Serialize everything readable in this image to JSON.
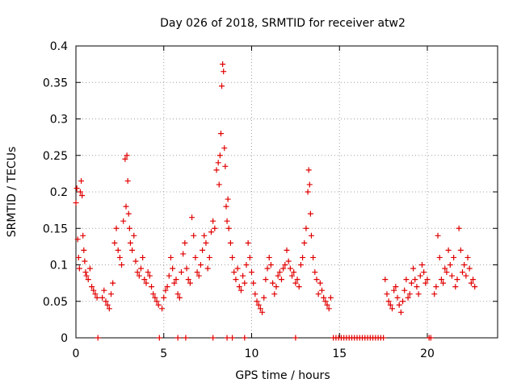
{
  "chart_data": {
    "type": "scatter",
    "title": "Day 026 of 2018, SRMTID for receiver atw2",
    "xlabel": "GPS time / hours",
    "ylabel": "SRMTID / TECUs",
    "xlim": [
      0,
      24
    ],
    "ylim": [
      0,
      0.4
    ],
    "xticks": [
      0,
      5,
      10,
      15,
      20
    ],
    "yticks": [
      0,
      0.05,
      0.1,
      0.15,
      0.2,
      0.25,
      0.3,
      0.35,
      0.4
    ],
    "ytick_labels": [
      "0",
      "0.05",
      "0.1",
      "0.15",
      "0.2",
      "0.25",
      "0.3",
      "0.35",
      "0.4"
    ],
    "grid": true,
    "marker": "plus",
    "color": "#e00000",
    "series": [
      {
        "name": "SRMTID",
        "x": [
          0.0,
          0.05,
          0.1,
          0.15,
          0.2,
          0.25,
          0.3,
          0.35,
          0.4,
          0.45,
          0.5,
          0.55,
          0.6,
          0.7,
          0.8,
          0.9,
          1.0,
          1.1,
          1.2,
          1.5,
          1.6,
          1.7,
          1.8,
          1.9,
          2.0,
          2.1,
          2.2,
          2.3,
          2.4,
          2.5,
          2.6,
          2.7,
          2.8,
          2.85,
          2.9,
          2.95,
          3.0,
          3.05,
          3.1,
          3.2,
          3.3,
          3.4,
          3.5,
          3.6,
          3.7,
          3.8,
          3.9,
          4.0,
          4.1,
          4.2,
          4.3,
          4.4,
          4.5,
          4.6,
          4.7,
          4.9,
          5.0,
          5.1,
          5.2,
          5.3,
          5.4,
          5.5,
          5.6,
          5.7,
          5.8,
          5.9,
          6.0,
          6.1,
          6.2,
          6.3,
          6.4,
          6.5,
          6.6,
          6.7,
          6.8,
          6.9,
          7.0,
          7.1,
          7.2,
          7.3,
          7.4,
          7.5,
          7.6,
          7.7,
          7.8,
          7.9,
          8.0,
          8.1,
          8.15,
          8.2,
          8.25,
          8.3,
          8.35,
          8.4,
          8.45,
          8.5,
          8.55,
          8.6,
          8.65,
          8.7,
          8.8,
          8.9,
          9.0,
          9.1,
          9.2,
          9.3,
          9.4,
          9.5,
          9.6,
          9.7,
          9.8,
          9.9,
          10.0,
          10.1,
          10.2,
          10.3,
          10.4,
          10.5,
          10.6,
          10.7,
          10.8,
          10.9,
          11.0,
          11.1,
          11.2,
          11.3,
          11.4,
          11.5,
          11.6,
          11.7,
          11.8,
          11.9,
          12.0,
          12.1,
          12.2,
          12.3,
          12.4,
          12.5,
          12.6,
          12.7,
          12.8,
          12.9,
          13.0,
          13.1,
          13.2,
          13.25,
          13.3,
          13.35,
          13.4,
          13.5,
          13.6,
          13.7,
          13.8,
          13.9,
          14.0,
          14.1,
          14.2,
          14.3,
          14.4,
          14.5,
          17.6,
          17.7,
          17.8,
          17.9,
          18.0,
          18.1,
          18.2,
          18.3,
          18.4,
          18.5,
          18.6,
          18.7,
          18.8,
          18.9,
          19.0,
          19.1,
          19.2,
          19.3,
          19.4,
          19.5,
          19.6,
          19.7,
          19.8,
          19.9,
          20.0,
          20.4,
          20.5,
          20.6,
          20.7,
          20.8,
          20.9,
          21.0,
          21.1,
          21.2,
          21.3,
          21.4,
          21.5,
          21.6,
          21.7,
          21.8,
          21.9,
          22.0,
          22.1,
          22.2,
          22.3,
          22.4,
          22.5,
          22.6,
          22.7,
          1.25,
          4.75,
          5.8,
          6.25,
          7.8,
          8.6,
          8.9,
          9.6,
          12.5,
          14.65,
          14.8,
          14.95,
          15.1,
          15.25,
          15.4,
          15.55,
          15.7,
          15.85,
          16.0,
          16.15,
          16.3,
          16.45,
          16.6,
          16.75,
          16.9,
          17.05,
          17.2,
          17.35,
          17.5,
          20.1,
          20.2
        ],
        "y": [
          0.185,
          0.205,
          0.135,
          0.11,
          0.095,
          0.2,
          0.215,
          0.195,
          0.14,
          0.12,
          0.105,
          0.09,
          0.085,
          0.08,
          0.095,
          0.07,
          0.065,
          0.06,
          0.055,
          0.055,
          0.065,
          0.05,
          0.045,
          0.04,
          0.06,
          0.075,
          0.13,
          0.15,
          0.12,
          0.11,
          0.1,
          0.16,
          0.245,
          0.18,
          0.25,
          0.215,
          0.17,
          0.15,
          0.13,
          0.12,
          0.14,
          0.105,
          0.09,
          0.085,
          0.095,
          0.11,
          0.08,
          0.075,
          0.09,
          0.085,
          0.07,
          0.06,
          0.055,
          0.05,
          0.045,
          0.04,
          0.055,
          0.065,
          0.07,
          0.085,
          0.11,
          0.095,
          0.075,
          0.08,
          0.06,
          0.055,
          0.09,
          0.115,
          0.13,
          0.095,
          0.08,
          0.075,
          0.165,
          0.14,
          0.11,
          0.09,
          0.085,
          0.1,
          0.12,
          0.14,
          0.13,
          0.095,
          0.11,
          0.145,
          0.16,
          0.15,
          0.23,
          0.24,
          0.21,
          0.25,
          0.28,
          0.345,
          0.375,
          0.365,
          0.26,
          0.235,
          0.18,
          0.16,
          0.19,
          0.15,
          0.13,
          0.11,
          0.09,
          0.08,
          0.095,
          0.07,
          0.065,
          0.085,
          0.075,
          0.1,
          0.13,
          0.11,
          0.09,
          0.075,
          0.06,
          0.05,
          0.045,
          0.04,
          0.035,
          0.055,
          0.08,
          0.095,
          0.11,
          0.1,
          0.075,
          0.06,
          0.07,
          0.085,
          0.09,
          0.08,
          0.095,
          0.1,
          0.12,
          0.105,
          0.095,
          0.085,
          0.09,
          0.075,
          0.08,
          0.07,
          0.1,
          0.11,
          0.13,
          0.15,
          0.2,
          0.23,
          0.21,
          0.17,
          0.14,
          0.11,
          0.09,
          0.08,
          0.06,
          0.075,
          0.065,
          0.055,
          0.05,
          0.045,
          0.04,
          0.055,
          0.08,
          0.06,
          0.05,
          0.045,
          0.04,
          0.065,
          0.07,
          0.055,
          0.045,
          0.035,
          0.05,
          0.065,
          0.08,
          0.055,
          0.06,
          0.075,
          0.095,
          0.08,
          0.07,
          0.06,
          0.085,
          0.1,
          0.09,
          0.075,
          0.08,
          0.06,
          0.07,
          0.14,
          0.11,
          0.08,
          0.075,
          0.095,
          0.09,
          0.12,
          0.1,
          0.085,
          0.11,
          0.07,
          0.08,
          0.15,
          0.12,
          0.09,
          0.1,
          0.085,
          0.11,
          0.095,
          0.075,
          0.08,
          0.07,
          0,
          0,
          0,
          0,
          0,
          0,
          0,
          0,
          0,
          0,
          0,
          0,
          0,
          0,
          0,
          0,
          0,
          0,
          0,
          0,
          0,
          0,
          0,
          0,
          0,
          0,
          0,
          0,
          0,
          0,
          0
        ]
      }
    ]
  }
}
